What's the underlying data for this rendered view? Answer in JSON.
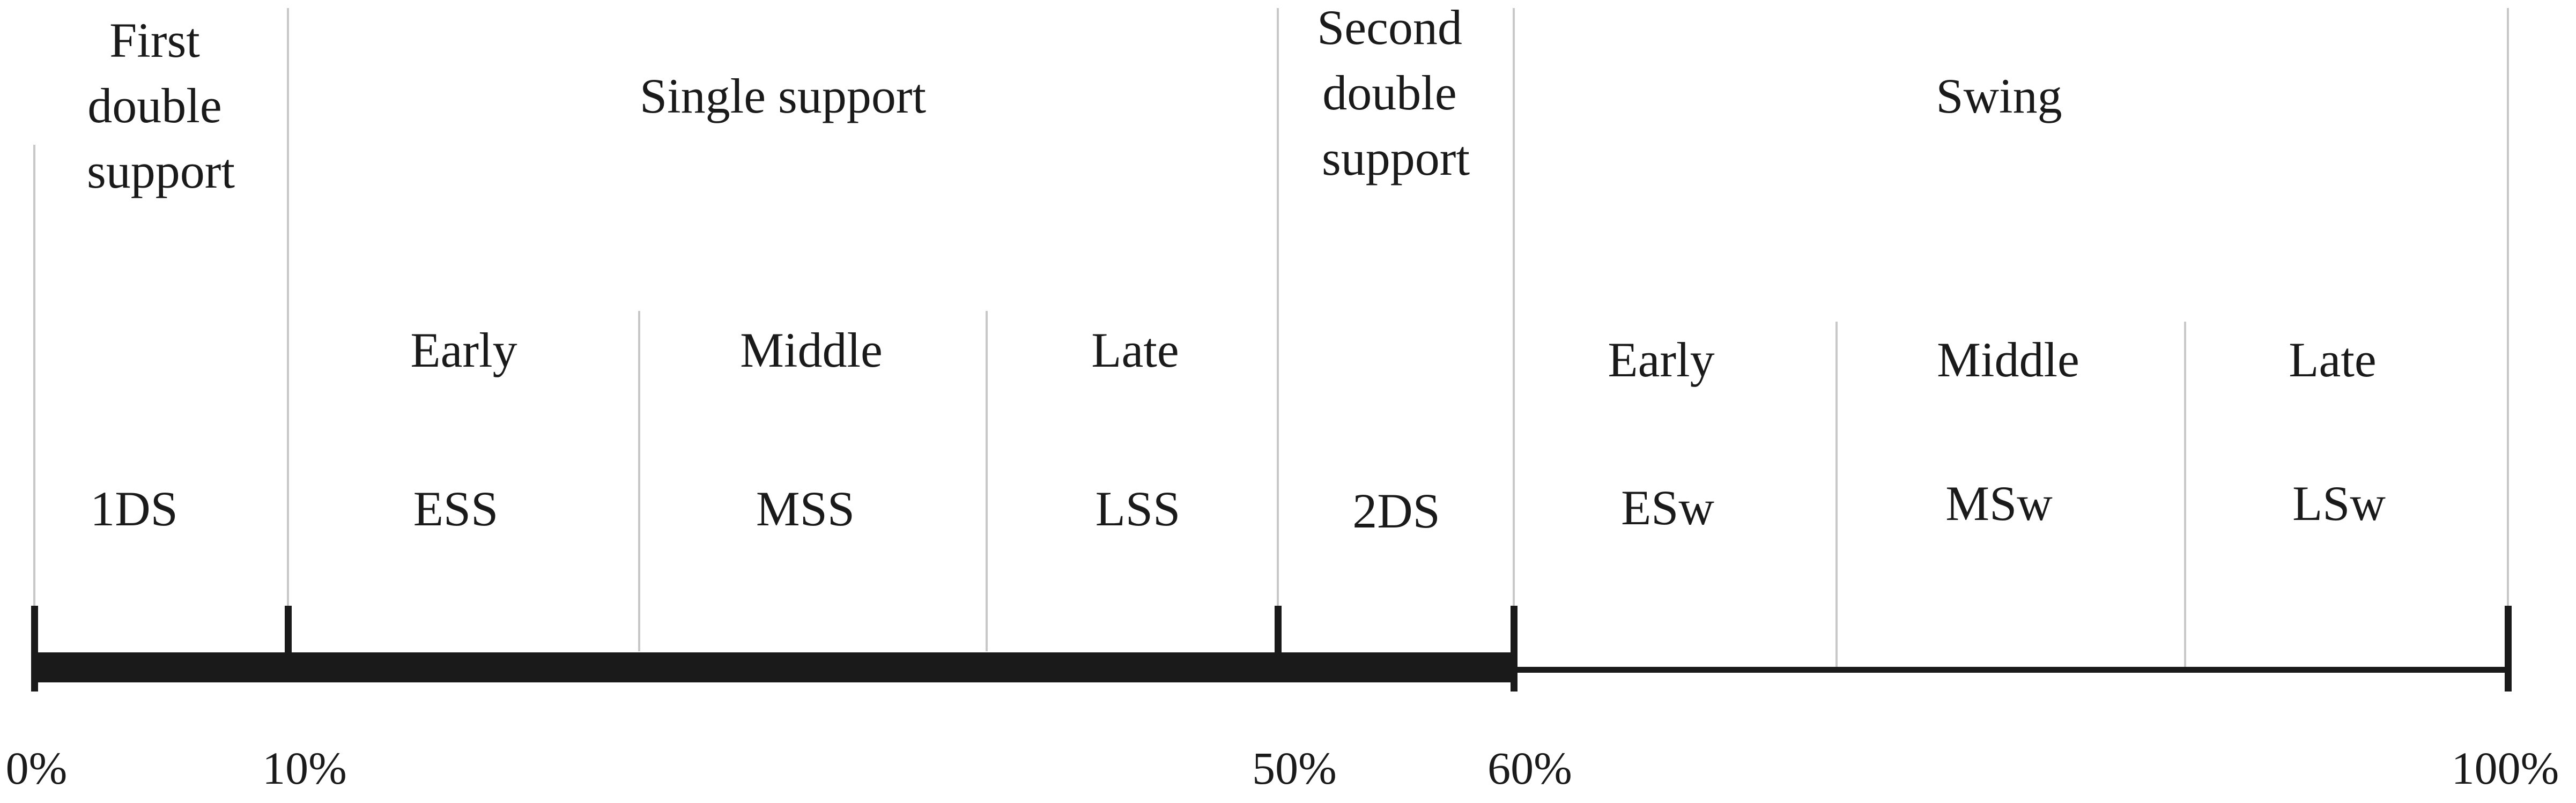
{
  "diagram": {
    "phases": [
      {
        "id": "first-double-support",
        "lines": [
          "First",
          "double",
          "support"
        ],
        "abbr": "1DS"
      },
      {
        "id": "single-support",
        "lines": [
          "Single support"
        ]
      },
      {
        "id": "second-double-support",
        "lines": [
          "Second",
          "double",
          "support"
        ],
        "abbr": "2DS"
      },
      {
        "id": "swing",
        "lines": [
          "Swing"
        ]
      }
    ],
    "subphases": [
      {
        "id": "early-single-support",
        "label": "Early",
        "abbr": "ESS"
      },
      {
        "id": "middle-single-support",
        "label": "Middle",
        "abbr": "MSS"
      },
      {
        "id": "late-single-support",
        "label": "Late",
        "abbr": "LSS"
      },
      {
        "id": "early-swing",
        "label": "Early",
        "abbr": "ESw"
      },
      {
        "id": "middle-swing",
        "label": "Middle",
        "abbr": "MSw"
      },
      {
        "id": "late-swing",
        "label": "Late",
        "abbr": "LSw"
      }
    ],
    "percent_labels": [
      "0%",
      "10%",
      "50%",
      "60%",
      "100%"
    ],
    "stance_end_percent": 60,
    "colors": {
      "bar": "#1a1a1a",
      "divider": "#c8c8c8",
      "text": "#1a1a1a"
    }
  }
}
